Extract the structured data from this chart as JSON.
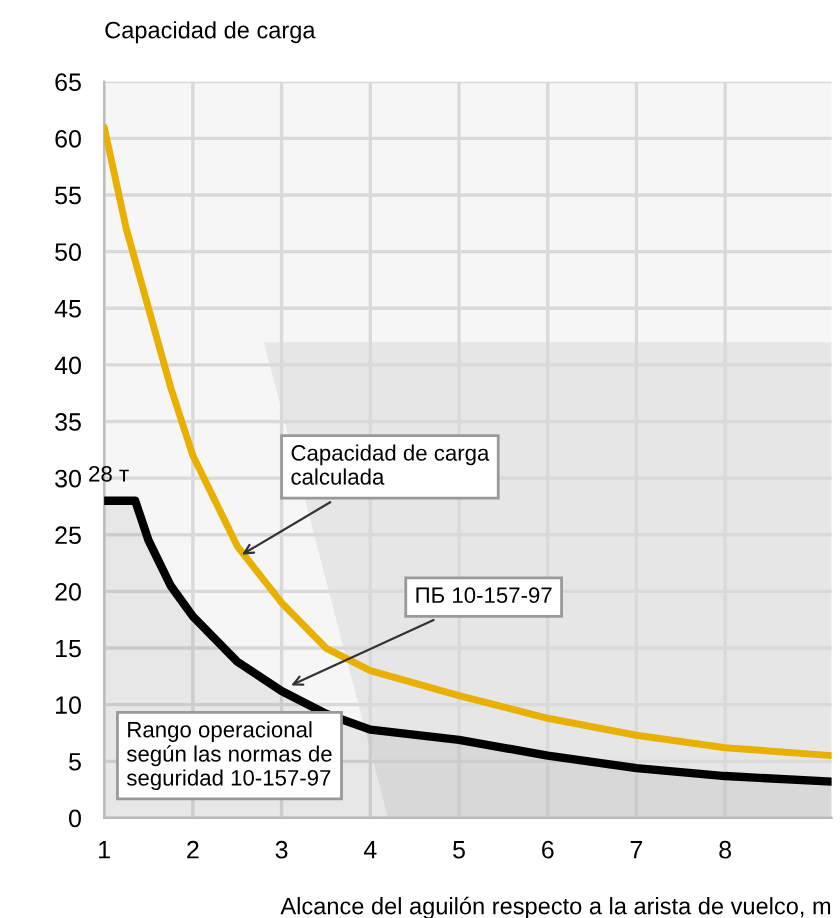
{
  "chart_data": {
    "type": "line",
    "title": "Capacidad de carga",
    "xlabel": "Alcance del aguilón respecto a la arista de vuelco, m",
    "xlim": [
      1,
      9.2
    ],
    "xticks": [
      1,
      2,
      3,
      4,
      5,
      6,
      7,
      8
    ],
    "ylim": [
      0,
      65
    ],
    "yticks": [
      0,
      5,
      10,
      15,
      20,
      25,
      30,
      35,
      40,
      45,
      50,
      55,
      60,
      65
    ],
    "grid": true,
    "series": [
      {
        "color": "#e8b000",
        "x": [
          1,
          1.25,
          1.5,
          1.75,
          2,
          2.5,
          3,
          3.5,
          4,
          5,
          6,
          7,
          8,
          9.2
        ],
        "values": [
          61,
          52,
          45,
          38,
          32,
          24,
          19,
          15,
          13,
          10.8,
          8.8,
          7.3,
          6.2,
          5.5
        ]
      },
      {
        "type": "area",
        "color": "#000000",
        "x": [
          1,
          1.35,
          1.5,
          1.75,
          2,
          2.5,
          3,
          3.5,
          4,
          5,
          6,
          7,
          8,
          9.2
        ],
        "values": [
          28,
          28,
          24.5,
          20.5,
          17.8,
          13.8,
          11.2,
          9.2,
          7.8,
          6.9,
          5.5,
          4.4,
          3.7,
          3.2
        ]
      }
    ],
    "annotations": [
      {
        "text": "28 т",
        "x": 1.35,
        "y": 28
      },
      {
        "text": "Capacidad de carga\ncalculada",
        "x": 2.5,
        "y": 23
      },
      {
        "text": "ПБ 10-157-97",
        "x": 3.05,
        "y": 11.5
      },
      "Rango operacional\nsegún las normas de\nseguridad 10-157-97"
    ]
  }
}
